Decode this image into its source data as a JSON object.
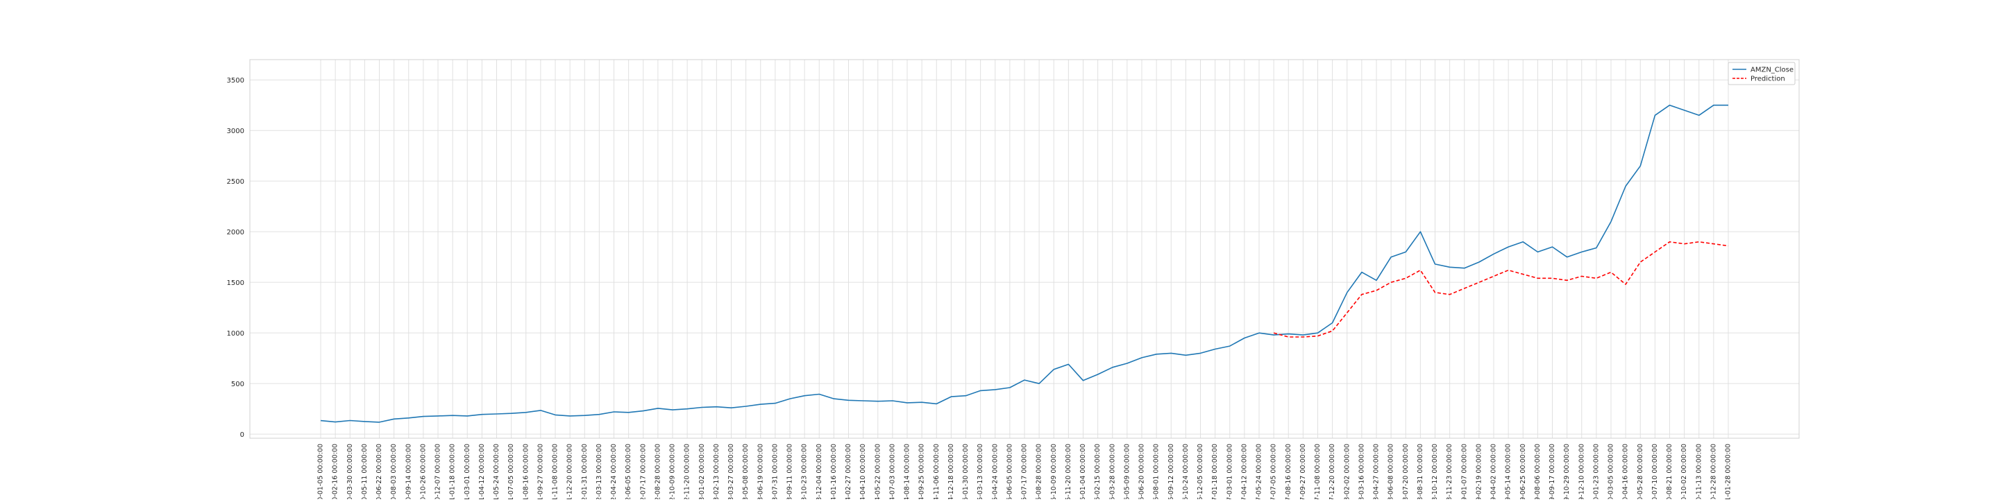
{
  "chart_data": {
    "type": "line",
    "title": "",
    "xlabel": "",
    "ylabel": "",
    "ylim": [
      -40,
      3700
    ],
    "yticks": [
      0,
      500,
      1000,
      1500,
      2000,
      2500,
      3000,
      3500
    ],
    "grid": true,
    "legend_position": "top-right",
    "x_ticklabels": [
      "2010-01-05 00:00:00",
      "2010-02-16 00:00:00",
      "2010-03-30 00:00:00",
      "2010-05-11 00:00:00",
      "2010-06-22 00:00:00",
      "2010-08-03 00:00:00",
      "2010-09-14 00:00:00",
      "2010-10-26 00:00:00",
      "2010-12-07 00:00:00",
      "2011-01-18 00:00:00",
      "2011-03-01 00:00:00",
      "2011-04-12 00:00:00",
      "2011-05-24 00:00:00",
      "2011-07-05 00:00:00",
      "2011-08-16 00:00:00",
      "2011-09-27 00:00:00",
      "2011-11-08 00:00:00",
      "2011-12-20 00:00:00",
      "2012-01-31 00:00:00",
      "2012-03-13 00:00:00",
      "2012-04-24 00:00:00",
      "2012-06-05 00:00:00",
      "2012-07-17 00:00:00",
      "2012-08-28 00:00:00",
      "2012-10-09 00:00:00",
      "2012-11-20 00:00:00",
      "2013-01-02 00:00:00",
      "2013-02-13 00:00:00",
      "2013-03-27 00:00:00",
      "2013-05-08 00:00:00",
      "2013-06-19 00:00:00",
      "2013-07-31 00:00:00",
      "2013-09-11 00:00:00",
      "2013-10-23 00:00:00",
      "2013-12-04 00:00:00",
      "2014-01-16 00:00:00",
      "2014-02-27 00:00:00",
      "2014-04-10 00:00:00",
      "2014-05-22 00:00:00",
      "2014-07-03 00:00:00",
      "2014-08-14 00:00:00",
      "2014-09-25 00:00:00",
      "2014-11-06 00:00:00",
      "2014-12-18 00:00:00",
      "2015-01-30 00:00:00",
      "2015-03-13 00:00:00",
      "2015-04-24 00:00:00",
      "2015-06-05 00:00:00",
      "2015-07-17 00:00:00",
      "2015-08-28 00:00:00",
      "2015-10-09 00:00:00",
      "2015-11-20 00:00:00",
      "2016-01-04 00:00:00",
      "2016-02-15 00:00:00",
      "2016-03-28 00:00:00",
      "2016-05-09 00:00:00",
      "2016-06-20 00:00:00",
      "2016-08-01 00:00:00",
      "2016-09-12 00:00:00",
      "2016-10-24 00:00:00",
      "2016-12-05 00:00:00",
      "2017-01-18 00:00:00",
      "2017-03-01 00:00:00",
      "2017-04-12 00:00:00",
      "2017-05-24 00:00:00",
      "2017-07-05 00:00:00",
      "2017-08-16 00:00:00",
      "2017-09-27 00:00:00",
      "2017-11-08 00:00:00",
      "2017-12-20 00:00:00",
      "2018-02-02 00:00:00",
      "2018-03-16 00:00:00",
      "2018-04-27 00:00:00",
      "2018-06-08 00:00:00",
      "2018-07-20 00:00:00",
      "2018-08-31 00:00:00",
      "2018-10-12 00:00:00",
      "2018-11-23 00:00:00",
      "2019-01-07 00:00:00",
      "2019-02-19 00:00:00",
      "2019-04-02 00:00:00",
      "2019-05-14 00:00:00",
      "2019-06-25 00:00:00",
      "2019-08-06 00:00:00",
      "2019-09-17 00:00:00",
      "2019-10-29 00:00:00",
      "2019-12-10 00:00:00",
      "2020-01-23 00:00:00",
      "2020-03-05 00:00:00",
      "2020-04-16 00:00:00",
      "2020-05-28 00:00:00",
      "2020-07-10 00:00:00",
      "2020-08-21 00:00:00",
      "2020-10-02 00:00:00",
      "2020-11-13 00:00:00",
      "2020-12-28 00:00:00",
      "2021-01-28 00:00:00"
    ],
    "series": [
      {
        "name": "AMZN_Close",
        "color": "#1f77b4",
        "style": "solid",
        "x": [
          0,
          1,
          2,
          3,
          4,
          5,
          6,
          7,
          8,
          9,
          10,
          11,
          12,
          13,
          14,
          15,
          16,
          17,
          18,
          19,
          20,
          21,
          22,
          23,
          24,
          25,
          26,
          27,
          28,
          29,
          30,
          31,
          32,
          33,
          34,
          35,
          36,
          37,
          38,
          39,
          40,
          41,
          42,
          43,
          44,
          45,
          46,
          47,
          48,
          49,
          50,
          51,
          52,
          53,
          54,
          55,
          56,
          57,
          58,
          59,
          60,
          61,
          62,
          63,
          64,
          65,
          66,
          67,
          68,
          69,
          70,
          71,
          72,
          73,
          74,
          75,
          76,
          77,
          78,
          79,
          80,
          81,
          82,
          83,
          84,
          85,
          86,
          87,
          88,
          89,
          90,
          91,
          92,
          93,
          94,
          95,
          96
        ],
        "values": [
          134,
          120,
          135,
          125,
          118,
          150,
          160,
          175,
          180,
          185,
          180,
          195,
          200,
          205,
          215,
          235,
          190,
          180,
          185,
          195,
          220,
          215,
          230,
          255,
          240,
          250,
          265,
          270,
          260,
          275,
          295,
          305,
          350,
          380,
          395,
          350,
          335,
          330,
          325,
          330,
          310,
          315,
          300,
          370,
          380,
          430,
          440,
          460,
          535,
          500,
          640,
          690,
          530,
          590,
          660,
          700,
          755,
          790,
          800,
          780,
          800,
          840,
          870,
          950,
          1000,
          980,
          990,
          980,
          1000,
          1100,
          1400,
          1600,
          1520,
          1750,
          1800,
          2000,
          1680,
          1650,
          1640,
          1700,
          1780,
          1850,
          1900,
          1800,
          1850,
          1750,
          1800,
          1840,
          2100,
          2450,
          2650,
          3150,
          3250,
          3200,
          3150,
          3250,
          3250
        ]
      },
      {
        "name": "Prediction",
        "color": "#ff0000",
        "style": "dashed",
        "x": [
          65,
          66,
          67,
          68,
          69,
          70,
          71,
          72,
          73,
          74,
          75,
          76,
          77,
          78,
          79,
          80,
          81,
          82,
          83,
          84,
          85,
          86,
          87,
          88,
          89,
          90,
          91,
          92,
          93,
          94,
          95,
          96
        ],
        "values": [
          1000,
          960,
          960,
          970,
          1020,
          1200,
          1380,
          1420,
          1500,
          1540,
          1620,
          1400,
          1380,
          1440,
          1500,
          1560,
          1620,
          1580,
          1540,
          1540,
          1520,
          1560,
          1540,
          1600,
          1480,
          1700,
          1800,
          1900,
          1880,
          1900,
          1880,
          1860
        ]
      }
    ]
  }
}
